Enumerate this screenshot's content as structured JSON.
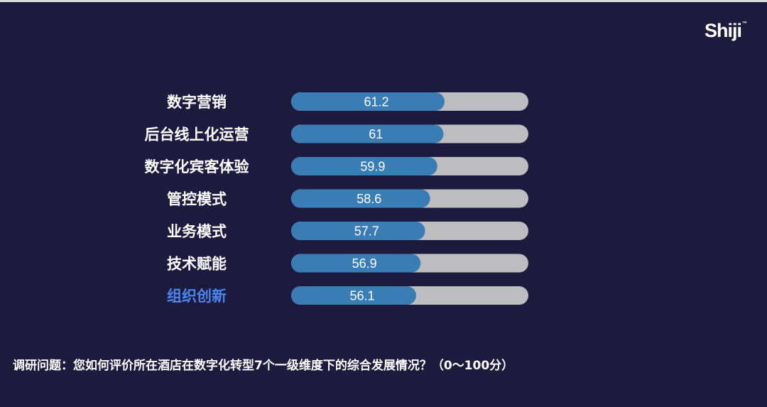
{
  "logo": {
    "text": "Shiji",
    "mark": "™"
  },
  "question": "调研问题：您如何评价所在酒店在数字化转型7个一级维度下的综合发展情况？（0～100分）",
  "colors": {
    "background": "#1c1b3e",
    "bar_fill": "#3a7db5",
    "bar_track": "#bdbdbf",
    "label": "#ffffff",
    "highlight_label": "#4a86f0"
  },
  "chart_data": {
    "type": "bar",
    "orientation": "horizontal",
    "categories": [
      "数字营销",
      "后台线上化运营",
      "数字化宾客体验",
      "管控模式",
      "业务模式",
      "技术赋能",
      "组织创新"
    ],
    "values": [
      61.2,
      61,
      59.9,
      58.6,
      57.7,
      56.9,
      56.1
    ],
    "value_labels": [
      "61.2",
      "61",
      "59.9",
      "58.6",
      "57.7",
      "56.9",
      "56.1"
    ],
    "highlighted_category": "组织创新",
    "xlim": [
      0,
      100
    ],
    "grid": false,
    "legend": "none"
  }
}
